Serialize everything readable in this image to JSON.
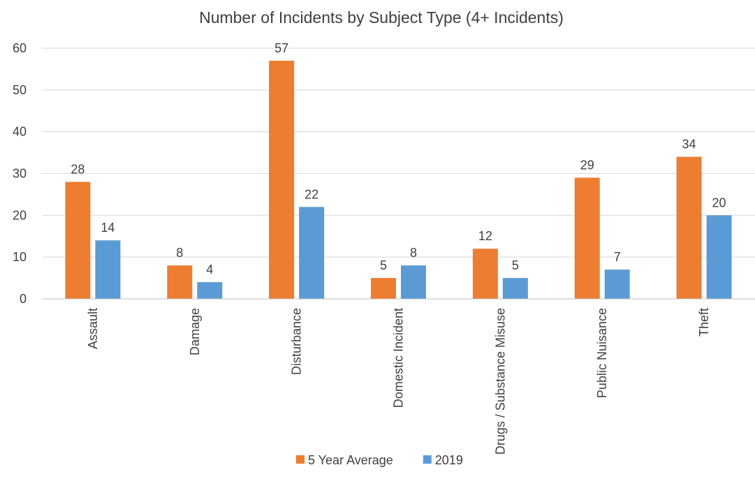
{
  "chart_data": {
    "type": "bar",
    "title": "Number of Incidents by Subject Type (4+ Incidents)",
    "xlabel": "",
    "ylabel": "",
    "ylim": [
      0,
      60
    ],
    "yticks": [
      0,
      10,
      20,
      30,
      40,
      50,
      60
    ],
    "grid": true,
    "legend_position": "bottom",
    "categories": [
      "Assault",
      "Damage",
      "Disturbance",
      "Domestic Incident",
      "Drugs / Substance Misuse",
      "Public Nuisance",
      "Theft"
    ],
    "series": [
      {
        "name": "5 Year Average",
        "color": "#ED7D31",
        "values": [
          28,
          8,
          57,
          5,
          12,
          29,
          34
        ]
      },
      {
        "name": "2019",
        "color": "#5B9BD5",
        "values": [
          14,
          4,
          22,
          8,
          5,
          7,
          20
        ]
      }
    ]
  }
}
